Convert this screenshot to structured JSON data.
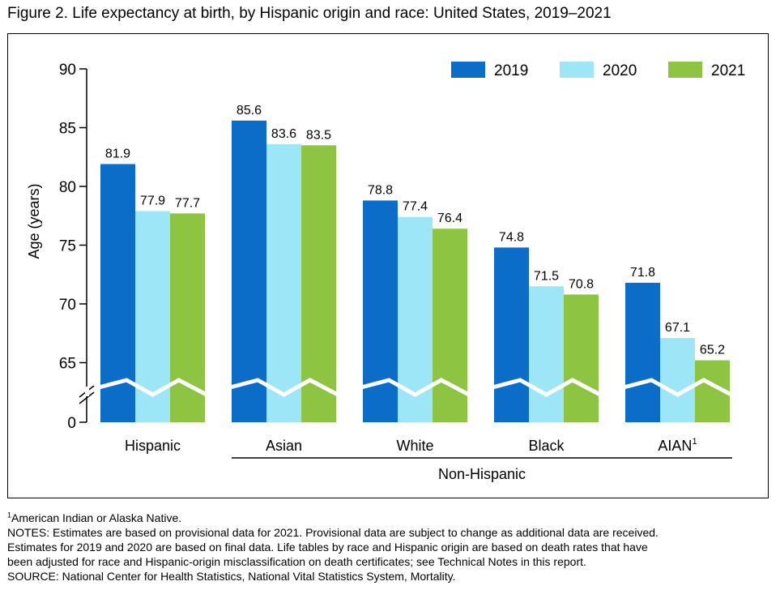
{
  "figure_title": "Figure 2. Life expectancy at birth, by Hispanic origin and race: United States, 2019–2021",
  "colors": {
    "2019": "#0b6dc8",
    "2020": "#9de6f7",
    "2021": "#8dc441"
  },
  "chart_data": {
    "type": "bar",
    "categories": [
      "Hispanic",
      "Asian",
      "White",
      "Black",
      "AIAN"
    ],
    "category_footnote_markers": [
      "",
      "",
      "",
      "",
      "1"
    ],
    "group_label": "Non-Hispanic",
    "series": [
      {
        "name": "2019",
        "values": [
          81.9,
          85.6,
          78.8,
          74.8,
          71.8
        ]
      },
      {
        "name": "2020",
        "values": [
          77.9,
          83.6,
          77.4,
          71.5,
          67.1
        ]
      },
      {
        "name": "2021",
        "values": [
          77.7,
          83.5,
          76.4,
          70.8,
          65.2
        ]
      }
    ],
    "data_labels": [
      [
        "81.9",
        "85.6",
        "78.8",
        "74.8",
        "71.8"
      ],
      [
        "77.9",
        "83.6",
        "77.4",
        "71.5",
        "67.1"
      ],
      [
        "77.7",
        "83.5",
        "76.4",
        "70.8",
        "65.2"
      ]
    ],
    "ylabel": "Age (years)",
    "yticks": [
      0,
      65,
      70,
      75,
      80,
      85,
      90
    ],
    "ytick_labels": [
      "0",
      "65",
      "70",
      "75",
      "80",
      "85",
      "90"
    ],
    "ylim": [
      0,
      90
    ],
    "axis_break": true,
    "grid": false,
    "legend_position": "top-right"
  },
  "footnote": {
    "marker": "1",
    "text": "American Indian or Alaska Native."
  },
  "notes": [
    "NOTES: Estimates are based on provisional data for 2021. Provisional data are subject to change as additional data are received.",
    "Estimates for 2019 and 2020 are based on final data. Life tables by race and Hispanic origin are based on death rates that have",
    "been adjusted for race and Hispanic-origin misclassification on death certificates; see Technical Notes in this report."
  ],
  "source": "SOURCE: National Center for Health Statistics, National Vital Statistics System, Mortality."
}
